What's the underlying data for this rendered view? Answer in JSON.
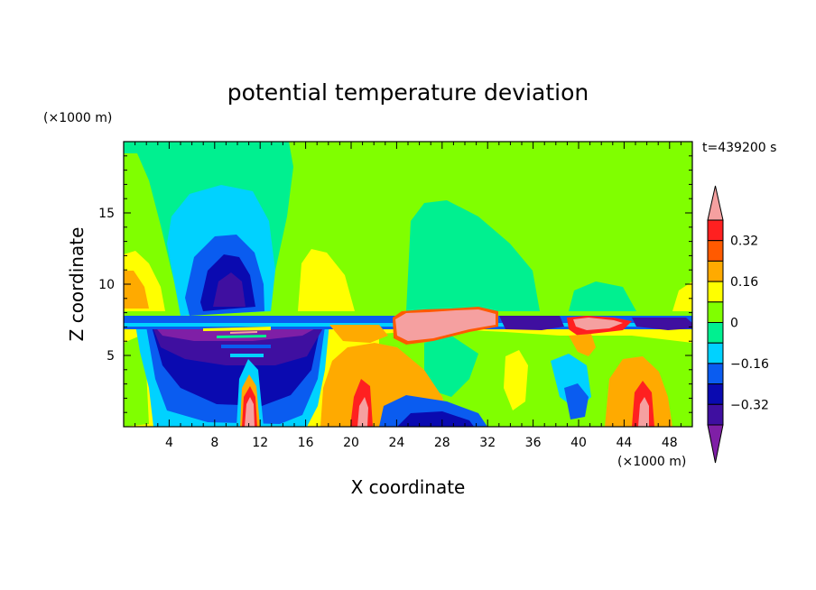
{
  "chart_data": {
    "type": "contour",
    "title": "potential temperature deviation",
    "xlabel": "X coordinate",
    "ylabel": "Z coordinate",
    "x_unit": "(×1000 m)",
    "y_unit": "(×1000 m)",
    "time_label": "t=439200 s",
    "xlim": [
      0,
      50
    ],
    "ylim": [
      0,
      20
    ],
    "x_ticks": [
      4,
      8,
      12,
      16,
      20,
      24,
      28,
      32,
      36,
      40,
      44,
      48
    ],
    "y_ticks": [
      5,
      10,
      15
    ],
    "colorbar": {
      "levels": [
        -0.4,
        -0.32,
        -0.24,
        -0.16,
        -0.08,
        0,
        0.08,
        0.16,
        0.24,
        0.32,
        0.4
      ],
      "labels": [
        "0.32",
        "0.16",
        "0",
        "−0.16",
        "−0.32"
      ],
      "label_values": [
        0.32,
        0.16,
        0,
        -0.16,
        -0.32
      ],
      "colors": [
        "#7f1fa6",
        "#3f0fa0",
        "#0a0ab0",
        "#0a5cf0",
        "#00d2ff",
        "#00f090",
        "#80ff00",
        "#ffff00",
        "#ffaa00",
        "#ff5a00",
        "#ff2020",
        "#f5a0a0"
      ]
    },
    "features": [
      {
        "x": 10,
        "z": 7,
        "value": -0.45
      },
      {
        "x": 10,
        "z": 12,
        "value": -0.3
      },
      {
        "x": 10,
        "z": 15,
        "value": -0.1
      },
      {
        "x": 2,
        "z": 10,
        "value": 0.15
      },
      {
        "x": 18,
        "z": 10,
        "value": 0.15
      },
      {
        "x": 12,
        "z": 2,
        "value": 0.42
      },
      {
        "x": 21,
        "z": 2,
        "value": 0.42
      },
      {
        "x": 28,
        "z": 7.2,
        "value": 0.42
      },
      {
        "x": 42,
        "z": 7.2,
        "value": 0.35
      },
      {
        "x": 46,
        "z": 2,
        "value": 0.42
      },
      {
        "x": 28,
        "z": 1,
        "value": -0.3
      },
      {
        "x": 36,
        "z": 14,
        "value": 0.02
      }
    ]
  }
}
